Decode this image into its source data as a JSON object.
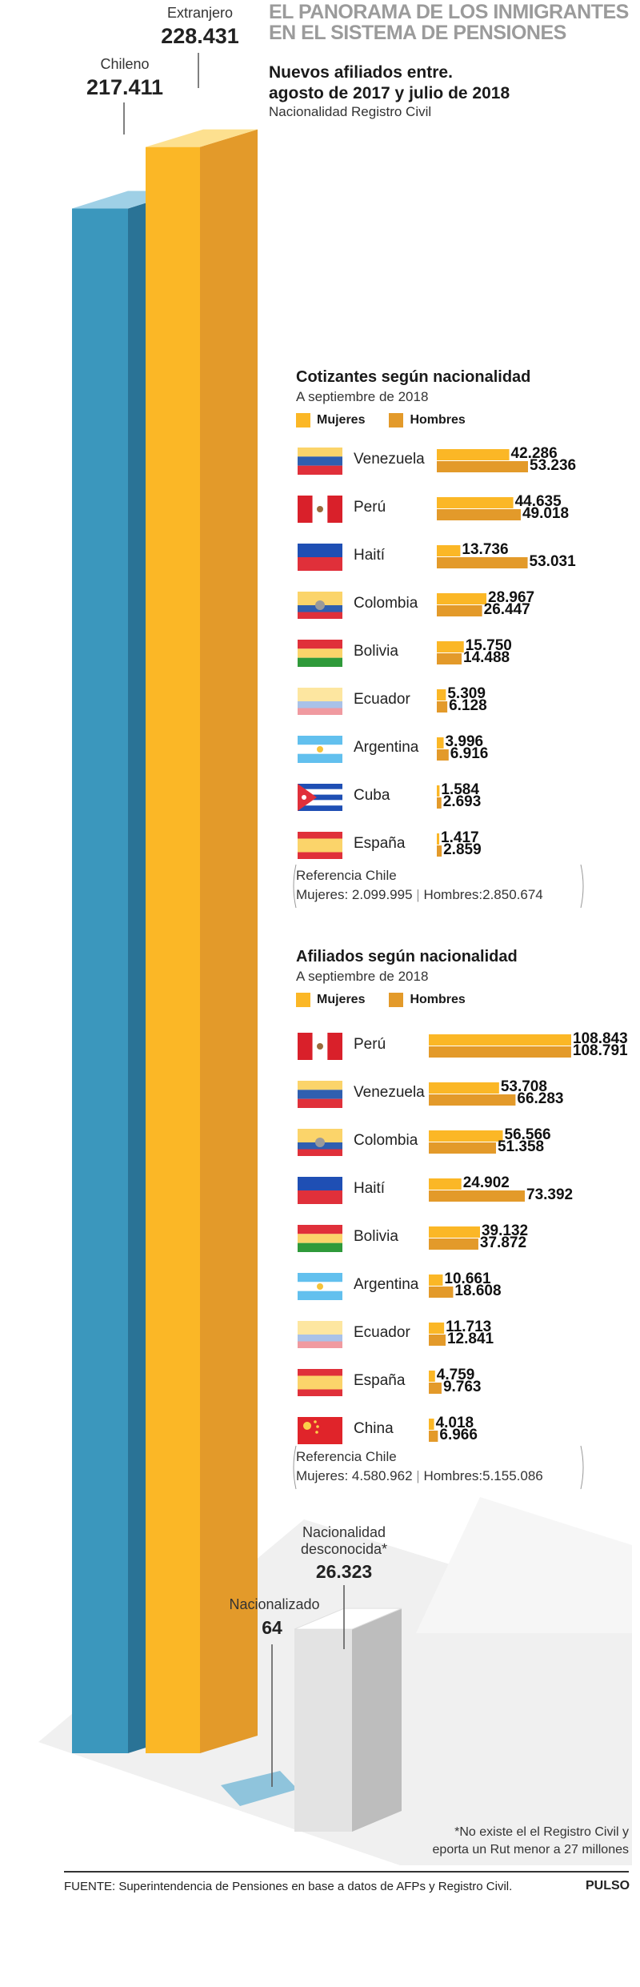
{
  "header": {
    "title_line1": "EL PANORAMA DE LOS INMIGRANTES",
    "title_line2": "EN EL SISTEMA DE PENSIONES",
    "subtitle_line1": "Nuevos afiliados entre.",
    "subtitle_line2": "agosto de 2017 y julio de 2018",
    "subtitle2": "Nacionalidad Registro Civil"
  },
  "chart_data": [
    {
      "type": "bar",
      "title": "Nuevos afiliados entre. agosto de 2017 y julio de 2018",
      "subtitle": "Nacionalidad Registro Civil",
      "categories": [
        "Chileno",
        "Extranjero",
        "Nacionalizado",
        "Nacionalidad desconocida*"
      ],
      "values": [
        217411,
        228431,
        64,
        26323
      ],
      "value_labels": [
        "217.411",
        "228.431",
        "64",
        "26.323"
      ],
      "colors": [
        "#3b97bd",
        "#fbb726",
        "#8fc4dc",
        "#e2e2e2"
      ]
    },
    {
      "type": "bar",
      "orientation": "horizontal",
      "title": "Cotizantes según nacionalidad",
      "subtitle": "A septiembre de 2018",
      "legend": [
        "Mujeres",
        "Hombres"
      ],
      "categories": [
        "Venezuela",
        "Perú",
        "Haití",
        "Colombia",
        "Bolivia",
        "Ecuador",
        "Argentina",
        "Cuba",
        "España"
      ],
      "series": [
        {
          "name": "Mujeres",
          "values": [
            42286,
            44635,
            13736,
            28967,
            15750,
            5309,
            3996,
            1584,
            1417
          ],
          "labels": [
            "42.286",
            "44.635",
            "13.736",
            "28.967",
            "15.750",
            "5.309",
            "3.996",
            "1.584",
            "1.417"
          ]
        },
        {
          "name": "Hombres",
          "values": [
            53236,
            49018,
            53031,
            26447,
            14488,
            6128,
            6916,
            2693,
            2859
          ],
          "labels": [
            "53.236",
            "49.018",
            "53.031",
            "26.447",
            "14.488",
            "6.128",
            "6.916",
            "2.693",
            "2.859"
          ]
        }
      ],
      "reference": {
        "line1": "Referencia Chile",
        "mujeres": "Mujeres: 2.099.995",
        "hombres": "Hombres:2.850.674"
      }
    },
    {
      "type": "bar",
      "orientation": "horizontal",
      "title": "Afiliados según nacionalidad",
      "subtitle": "A septiembre de 2018",
      "legend": [
        "Mujeres",
        "Hombres"
      ],
      "categories": [
        "Perú",
        "Venezuela",
        "Colombia",
        "Haití",
        "Bolivia",
        "Argentina",
        "Ecuador",
        "España",
        "China"
      ],
      "series": [
        {
          "name": "Mujeres",
          "values": [
            108843,
            53708,
            56566,
            24902,
            39132,
            10661,
            11713,
            4759,
            4018
          ],
          "labels": [
            "108.843",
            "53.708",
            "56.566",
            "24.902",
            "39.132",
            "10.661",
            "11.713",
            "4.759",
            "4.018"
          ]
        },
        {
          "name": "Hombres",
          "values": [
            108791,
            66283,
            51358,
            73392,
            37872,
            18608,
            12841,
            9763,
            6966
          ],
          "labels": [
            "108.791",
            "66.283",
            "51.358",
            "73.392",
            "37.872",
            "18.608",
            "12.841",
            "9.763",
            "6.966"
          ]
        }
      ],
      "reference": {
        "line1": "Referencia Chile",
        "mujeres": "Mujeres: 4.580.962",
        "hombres": "Hombres:5.155.086"
      }
    }
  ],
  "colors": {
    "mujeres": "#fbb726",
    "hombres": "#e39a2a",
    "chileno": "#3b97bd",
    "extranjero": "#fbb726"
  },
  "flags": [
    "venezuela-flag-icon",
    "peru-flag-icon",
    "haiti-flag-icon",
    "colombia-flag-icon",
    "bolivia-flag-icon",
    "ecuador-flag-icon",
    "argentina-flag-icon",
    "cuba-flag-icon",
    "spain-flag-icon",
    "china-flag-icon"
  ],
  "footnote": {
    "line1": "*No existe el el Registro Civil y",
    "line2": "eporta un Rut menor a 27 millones"
  },
  "source": "FUENTE: Superintendencia de Pensiones  en base a datos de AFPs y Registro Civil.",
  "brand": "PULSO"
}
